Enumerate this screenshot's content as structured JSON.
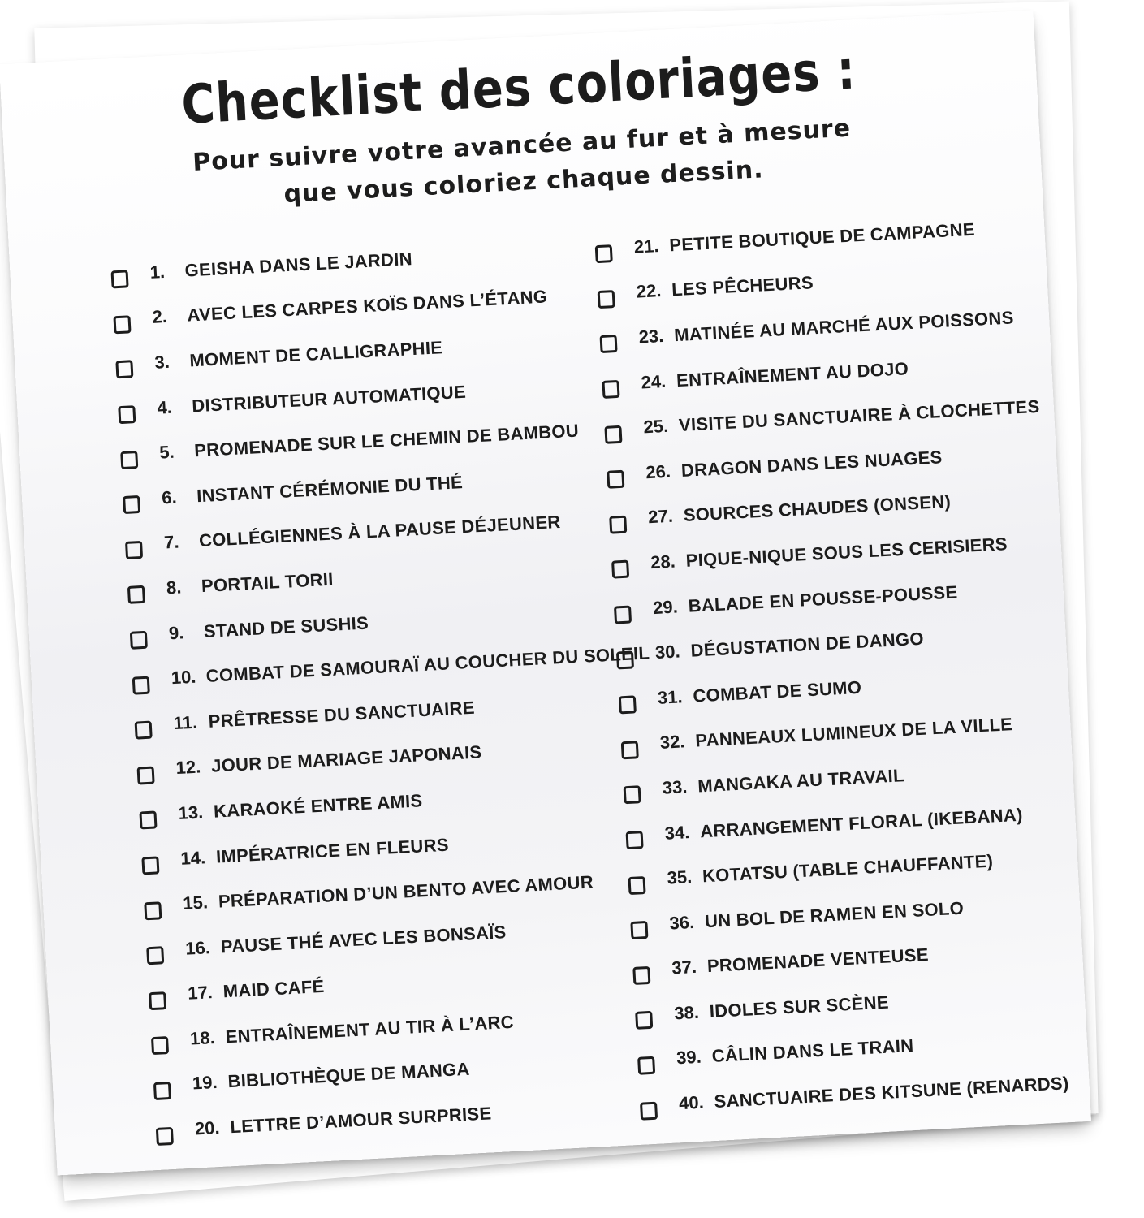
{
  "colors": {
    "ink": "#1c1c1c",
    "paper": "#ffffff"
  },
  "checklist": {
    "title": "Checklist des coloriages :",
    "subtitle": [
      "Pour suivre votre avancée au fur et à mesure",
      "que vous coloriez chaque dessin."
    ],
    "checkbox_state_all": "unchecked",
    "columns": [
      {
        "items": [
          {
            "num": "1.",
            "label": "GEISHA DANS LE JARDIN"
          },
          {
            "num": "2.",
            "label": "AVEC LES CARPES KOÏS DANS L’ÉTANG"
          },
          {
            "num": "3.",
            "label": "MOMENT DE CALLIGRAPHIE"
          },
          {
            "num": "4.",
            "label": "DISTRIBUTEUR AUTOMATIQUE"
          },
          {
            "num": "5.",
            "label": "PROMENADE SUR LE CHEMIN DE BAMBOU"
          },
          {
            "num": "6.",
            "label": "INSTANT CÉRÉMONIE DU THÉ"
          },
          {
            "num": "7.",
            "label": "COLLÉGIENNES À LA PAUSE DÉJEUNER"
          },
          {
            "num": "8.",
            "label": "PORTAIL TORII"
          },
          {
            "num": "9.",
            "label": "STAND DE SUSHIS"
          },
          {
            "num": "10.",
            "label": "COMBAT DE SAMOURAÏ AU COUCHER DU SOLEIL"
          },
          {
            "num": "11.",
            "label": "PRÊTRESSE DU SANCTUAIRE"
          },
          {
            "num": "12.",
            "label": "JOUR DE MARIAGE JAPONAIS"
          },
          {
            "num": "13.",
            "label": "KARAOKÉ ENTRE AMIS"
          },
          {
            "num": "14.",
            "label": "IMPÉRATRICE EN FLEURS"
          },
          {
            "num": "15.",
            "label": "PRÉPARATION D’UN BENTO AVEC AMOUR"
          },
          {
            "num": "16.",
            "label": "PAUSE THÉ AVEC LES BONSAÏS"
          },
          {
            "num": "17.",
            "label": "MAID CAFÉ"
          },
          {
            "num": "18.",
            "label": "ENTRAÎNEMENT AU TIR À L’ARC"
          },
          {
            "num": "19.",
            "label": "BIBLIOTHÈQUE DE MANGA"
          },
          {
            "num": "20.",
            "label": "LETTRE D’AMOUR SURPRISE"
          }
        ]
      },
      {
        "items": [
          {
            "num": "21.",
            "label": "PETITE BOUTIQUE DE CAMPAGNE"
          },
          {
            "num": "22.",
            "label": "LES PÊCHEURS"
          },
          {
            "num": "23.",
            "label": "MATINÉE AU MARCHÉ AUX POISSONS"
          },
          {
            "num": "24.",
            "label": "ENTRAÎNEMENT AU DOJO"
          },
          {
            "num": "25.",
            "label": "VISITE DU SANCTUAIRE À CLOCHETTES"
          },
          {
            "num": "26.",
            "label": "DRAGON DANS LES NUAGES"
          },
          {
            "num": "27.",
            "label": "SOURCES CHAUDES (ONSEN)"
          },
          {
            "num": "28.",
            "label": "PIQUE-NIQUE SOUS LES CERISIERS"
          },
          {
            "num": "29.",
            "label": "BALADE EN POUSSE-POUSSE"
          },
          {
            "num": "30.",
            "label": "DÉGUSTATION DE DANGO"
          },
          {
            "num": "31.",
            "label": "COMBAT DE SUMO"
          },
          {
            "num": "32.",
            "label": "PANNEAUX LUMINEUX DE LA VILLE"
          },
          {
            "num": "33.",
            "label": "MANGAKA AU TRAVAIL"
          },
          {
            "num": "34.",
            "label": "ARRANGEMENT FLORAL (IKEBANA)"
          },
          {
            "num": "35.",
            "label": "KOTATSU (TABLE CHAUFFANTE)"
          },
          {
            "num": "36.",
            "label": "UN BOL DE RAMEN EN SOLO"
          },
          {
            "num": "37.",
            "label": "PROMENADE VENTEUSE"
          },
          {
            "num": "38.",
            "label": "IDOLES SUR SCÈNE"
          },
          {
            "num": "39.",
            "label": "CÂLIN DANS LE TRAIN"
          },
          {
            "num": "40.",
            "label": "SANCTUAIRE DES KITSUNE (RENARDS)"
          }
        ]
      }
    ]
  }
}
